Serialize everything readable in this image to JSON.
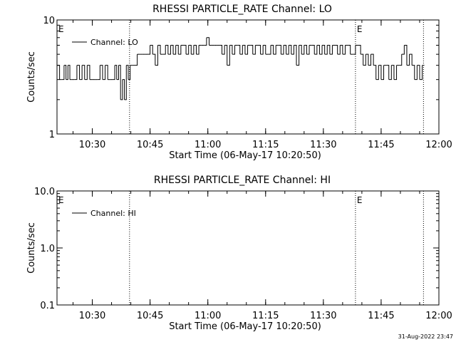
{
  "footer_timestamp": "31-Aug-2022 23:47",
  "chart_data": [
    {
      "type": "line",
      "title": "RHESSI PARTICLE_RATE Channel: LO",
      "xlabel": "Start Time (06-May-17 10:20:50)",
      "ylabel": "Counts/sec",
      "yscale": "log",
      "ylim": [
        1,
        10
      ],
      "xlim": [
        "10:20:50",
        "12:00:00"
      ],
      "x_ticks": [
        "10:30",
        "10:45",
        "11:00",
        "11:15",
        "11:30",
        "11:45",
        "12:00"
      ],
      "y_ticks": [
        "1",
        "10"
      ],
      "legend": "Channel: LO",
      "legend_position": "top-left",
      "event_lines": [
        "10:39:40",
        "11:38:20",
        "11:56:00"
      ],
      "event_markers": [
        {
          "x": "10:20:50",
          "label": "E"
        },
        {
          "x": "11:38:20",
          "label": "E"
        }
      ],
      "series": [
        {
          "name": "Channel: LO",
          "x": [
            "10:20:50",
            "10:21:30",
            "10:22:00",
            "10:22:40",
            "10:23:10",
            "10:23:40",
            "10:24:10",
            "10:24:40",
            "10:25:20",
            "10:26:00",
            "10:26:40",
            "10:27:20",
            "10:28:00",
            "10:28:40",
            "10:29:20",
            "10:30:00",
            "10:30:40",
            "10:31:20",
            "10:32:00",
            "10:32:40",
            "10:33:20",
            "10:34:00",
            "10:34:40",
            "10:35:20",
            "10:35:50",
            "10:36:20",
            "10:36:50",
            "10:37:20",
            "10:37:50",
            "10:38:20",
            "10:38:50",
            "10:39:20",
            "10:39:50",
            "10:40:20",
            "10:41:00",
            "10:41:40",
            "10:42:20",
            "10:43:00",
            "10:43:40",
            "10:44:20",
            "10:45:00",
            "10:45:40",
            "10:46:20",
            "10:47:00",
            "10:47:40",
            "10:48:20",
            "10:49:00",
            "10:49:40",
            "10:50:20",
            "10:51:00",
            "10:51:40",
            "10:52:20",
            "10:53:00",
            "10:53:40",
            "10:54:20",
            "10:55:00",
            "10:55:40",
            "10:56:20",
            "10:57:00",
            "10:57:40",
            "10:58:20",
            "10:59:00",
            "10:59:40",
            "11:00:20",
            "11:01:00",
            "11:01:40",
            "11:02:20",
            "11:03:00",
            "11:03:40",
            "11:04:20",
            "11:05:00",
            "11:05:40",
            "11:06:20",
            "11:07:00",
            "11:07:40",
            "11:08:20",
            "11:09:00",
            "11:09:40",
            "11:10:20",
            "11:11:00",
            "11:11:40",
            "11:12:20",
            "11:13:00",
            "11:13:40",
            "11:14:20",
            "11:15:00",
            "11:15:40",
            "11:16:20",
            "11:17:00",
            "11:17:40",
            "11:18:20",
            "11:19:00",
            "11:19:40",
            "11:20:20",
            "11:21:00",
            "11:21:40",
            "11:22:20",
            "11:23:00",
            "11:23:40",
            "11:24:20",
            "11:25:00",
            "11:25:40",
            "11:26:20",
            "11:27:00",
            "11:27:40",
            "11:28:20",
            "11:29:00",
            "11:29:40",
            "11:30:20",
            "11:31:00",
            "11:31:40",
            "11:32:20",
            "11:33:00",
            "11:33:40",
            "11:34:20",
            "11:35:00",
            "11:35:40",
            "11:36:20",
            "11:37:00",
            "11:37:40",
            "11:38:20",
            "11:39:00",
            "11:39:40",
            "11:40:20",
            "11:41:00",
            "11:41:40",
            "11:42:20",
            "11:43:00",
            "11:43:40",
            "11:44:20",
            "11:45:00",
            "11:45:40",
            "11:46:20",
            "11:47:00",
            "11:47:40",
            "11:48:20",
            "11:49:00",
            "11:49:40",
            "11:50:20",
            "11:51:00",
            "11:51:40",
            "11:52:20",
            "11:53:00",
            "11:53:40",
            "11:54:20",
            "11:55:00",
            "11:55:40"
          ],
          "values": [
            4,
            3,
            3,
            4,
            3,
            4,
            3,
            3,
            3,
            4,
            3,
            4,
            3,
            4,
            3,
            3,
            3,
            3,
            4,
            3,
            4,
            3,
            3,
            3,
            4,
            3,
            4,
            2,
            3,
            2,
            4,
            3,
            4,
            4,
            4,
            5,
            5,
            5,
            5,
            5,
            6,
            5,
            4,
            6,
            5,
            5,
            6,
            5,
            6,
            5,
            6,
            5,
            6,
            6,
            5,
            6,
            5,
            6,
            5,
            6,
            6,
            6,
            7,
            6,
            6,
            6,
            6,
            6,
            5,
            6,
            4,
            6,
            5,
            6,
            6,
            5,
            6,
            5,
            6,
            6,
            5,
            6,
            6,
            5,
            6,
            5,
            5,
            6,
            5,
            6,
            6,
            5,
            6,
            5,
            6,
            5,
            6,
            4,
            6,
            5,
            6,
            5,
            6,
            6,
            5,
            6,
            5,
            6,
            5,
            6,
            5,
            6,
            6,
            5,
            6,
            5,
            6,
            6,
            5,
            5,
            6,
            6,
            5,
            4,
            5,
            4,
            5,
            4,
            3,
            4,
            3,
            4,
            4,
            3,
            4,
            3,
            4,
            4,
            5,
            6,
            4,
            5,
            4,
            3,
            4,
            3,
            4
          ]
        }
      ]
    },
    {
      "type": "line",
      "title": "RHESSI PARTICLE_RATE Channel: HI",
      "xlabel": "Start Time (06-May-17 10:20:50)",
      "ylabel": "Counts/sec",
      "yscale": "log",
      "ylim": [
        0.1,
        10
      ],
      "xlim": [
        "10:20:50",
        "12:00:00"
      ],
      "x_ticks": [
        "10:30",
        "10:45",
        "11:00",
        "11:15",
        "11:30",
        "11:45",
        "12:00"
      ],
      "y_ticks": [
        "0.1",
        "1.0",
        "10.0"
      ],
      "legend": "Channel: HI",
      "legend_position": "top-left",
      "event_lines": [
        "10:39:40",
        "11:38:20",
        "11:56:00"
      ],
      "event_markers": [
        {
          "x": "10:20:50",
          "label": "E"
        },
        {
          "x": "11:38:20",
          "label": "E"
        }
      ],
      "series": [
        {
          "name": "Channel: HI",
          "x": [],
          "values": []
        }
      ]
    }
  ]
}
